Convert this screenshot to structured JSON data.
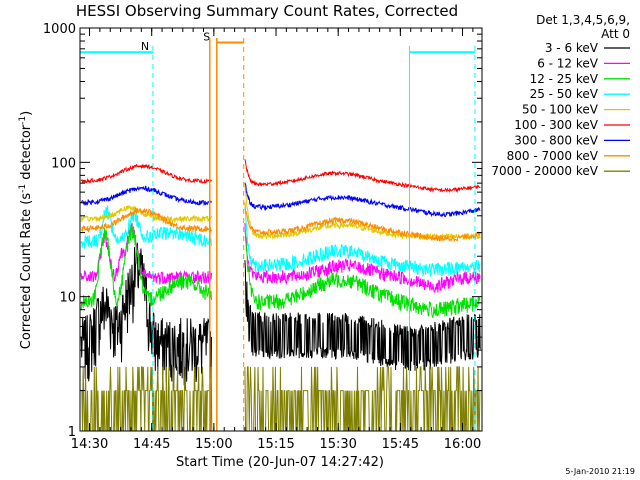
{
  "chart_data": {
    "type": "line",
    "title": "HESSI Observing Summary Count Rates, Corrected",
    "xlabel": "Start Time (20-Jun-07 14:27:42)",
    "ylabel_main": "Corrected Count Rate (s",
    "ylabel_sup1": "-1",
    "ylabel_mid": " detector",
    "ylabel_sup2": "-1",
    "ylabel_end": ")",
    "footer_date": "5-Jan-2010 21:19",
    "y_scale": "log",
    "ylim": [
      1,
      1000
    ],
    "xlim_minutes": [
      0,
      97
    ],
    "x_ticks": [
      {
        "label": "14:30",
        "t": 2.3
      },
      {
        "label": "14:45",
        "t": 17.3
      },
      {
        "label": "15:00",
        "t": 32.3
      },
      {
        "label": "15:15",
        "t": 47.3
      },
      {
        "label": "15:30",
        "t": 62.3
      },
      {
        "label": "15:45",
        "t": 77.3
      },
      {
        "label": "16:00",
        "t": 92.3
      }
    ],
    "y_ticks": [
      {
        "label": "1",
        "v": 1
      },
      {
        "label": "10",
        "v": 10
      },
      {
        "label": "100",
        "v": 100
      },
      {
        "label": "1000",
        "v": 1000
      }
    ],
    "legend_header": [
      "Det 1,3,4,5,6,9,",
      "Att 0"
    ],
    "legend_placement": "right",
    "series": [
      {
        "name": "3 - 6 keV",
        "color": "#000000"
      },
      {
        "name": "6 - 12 keV",
        "color": "#ff00ff"
      },
      {
        "name": "12 - 25 keV",
        "color": "#00e000"
      },
      {
        "name": "25 - 50 keV",
        "color": "#00ffff"
      },
      {
        "name": "50 - 100 keV",
        "color": "#e0c800"
      },
      {
        "name": "100 - 300 keV",
        "color": "#ff0000"
      },
      {
        "name": "300 - 800 keV",
        "color": "#0000ff"
      },
      {
        "name": "800 - 7000 keV",
        "color": "#ff8c00"
      },
      {
        "name": "7000 - 20000 keV",
        "color": "#808000"
      }
    ],
    "annotations": [
      {
        "label": "N",
        "color": "#00ffff",
        "t_start": 0,
        "t_end": 17.6,
        "level": 660
      },
      {
        "label": "S",
        "color": "#ff8c00",
        "t_start": 33.0,
        "t_end": 39.5,
        "level": 780
      },
      {
        "label": "",
        "color": "#00ffff",
        "t_start": 79.5,
        "t_end": 95.3,
        "level": 660
      }
    ],
    "data_gap_minutes": [
      33.0,
      39.5
    ],
    "night_end_minutes": 17.6,
    "night_start_minutes": 79.5
  }
}
